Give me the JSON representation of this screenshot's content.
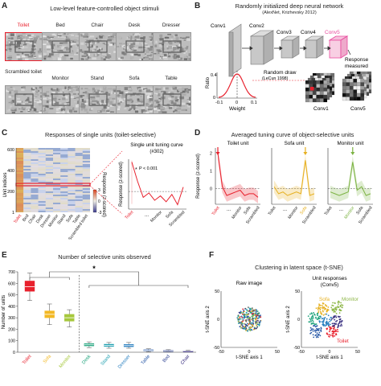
{
  "panel_a": {
    "label": "A",
    "title": "Low-level feature-controlled object stimuli",
    "stimuli": [
      "Toilet",
      "Bed",
      "Chair",
      "Desk",
      "Dresser",
      "Scrambled toilet",
      "Monitor",
      "Stand",
      "Sofa",
      "Table"
    ],
    "colors": {
      "highlight": "#e8212d"
    }
  },
  "panel_b": {
    "label": "B",
    "title": "Randomly initialized deep neural network",
    "subtitle": "(AlexNet, Krizhevsky 2012)",
    "layers": [
      "Conv1",
      "Conv2",
      "Conv3",
      "Conv4",
      "Conv5"
    ],
    "response_label": "Response measured",
    "random_draw": "Random draw",
    "random_draw_ref": "(LeCun 1998)",
    "ylabel": "Ratio",
    "xlabel": "Weight",
    "xticks": [
      "-0.1",
      "0",
      "0.1"
    ],
    "yticks": [
      "0.4",
      "0"
    ],
    "map_labels": [
      "Conv1",
      "Conv5"
    ],
    "colors": {
      "conv5": "#e8499d",
      "curve": "#e8212d"
    }
  },
  "panel_c": {
    "label": "C",
    "title": "Responses of single units (toilet-selective)",
    "ylabel": "Unit indices",
    "yticks": [
      "600",
      "400",
      "200",
      "1"
    ],
    "xcats": [
      "Toilet",
      "Bed",
      "Chair",
      "Desk",
      "Dresser",
      "Monitor",
      "Stand",
      "Sofa",
      "Table",
      "Scrambled toilet"
    ],
    "colorbar_label": "Response (z-scored)",
    "colorbar_ticks": [
      "3",
      "0",
      "-3"
    ],
    "inset_title": "Single unit tuning curve",
    "inset_subtitle": "(#302)",
    "pvalue": "P < 0.001",
    "inset_ylabel": "Response (z-scored)",
    "inset_xlabels": [
      "Toilet",
      "Monitor",
      "Sofa",
      "Scrambled"
    ],
    "inset_dots": "...",
    "inset_curve": [
      2.0,
      0.7,
      -0.4,
      -0.1,
      -0.6,
      -0.3,
      -0.7,
      -0.2,
      -0.9,
      0.3
    ]
  },
  "panel_d": {
    "label": "D",
    "title": "Averaged tuning curve of object-selective units",
    "ylabel": "Response (z-scored)",
    "yticks": [
      "2",
      "1",
      "0"
    ],
    "subplots": [
      {
        "title": "Toilet unit",
        "color": "#e8212d",
        "xlabels": [
          "Toilet",
          "Monitor",
          "Sofa",
          "Scrambled"
        ],
        "values": [
          2.0,
          0.1,
          -0.4,
          -0.3,
          -0.2,
          -0.1,
          -0.4,
          -0.3,
          -0.3,
          -0.5
        ]
      },
      {
        "title": "Sofa unit",
        "color": "#e6b020",
        "xlabels": [
          "Toilet",
          "Monitor",
          "Sofa",
          "Scrambled"
        ],
        "values": [
          0.1,
          -0.3,
          -0.2,
          -0.4,
          -0.3,
          -0.2,
          -0.3,
          1.6,
          -0.4,
          -0.3
        ]
      },
      {
        "title": "Monitor unit",
        "color": "#7cb342",
        "xlabels": [
          "Toilet",
          "Monitor",
          "Sofa",
          "Scrambled"
        ],
        "values": [
          -0.2,
          -0.3,
          -0.4,
          -0.3,
          -0.2,
          1.5,
          -0.1,
          0.1,
          -0.4,
          -0.3
        ]
      }
    ],
    "dots": "..."
  },
  "panel_e": {
    "label": "E",
    "title": "Number of selective units observed",
    "ylabel": "Number of units",
    "yticks": [
      "700",
      "600",
      "500",
      "400",
      "300",
      "200",
      "100",
      "0"
    ],
    "significance": "*",
    "categories": [
      "Toilet",
      "Sofa",
      "Monitor",
      "Desk",
      "Stand",
      "Dresser",
      "Table",
      "Bed",
      "Chair"
    ],
    "colors": [
      "#e8212d",
      "#f2b824",
      "#a6c83c",
      "#1fa37c",
      "#20a0b0",
      "#2a80c0",
      "#2a5aa8",
      "#2a3e90",
      "#3a3080"
    ],
    "boxes": [
      {
        "min": 450,
        "q1": 530,
        "median": 570,
        "q3": 620,
        "max": 690
      },
      {
        "min": 240,
        "q1": 300,
        "median": 330,
        "q3": 360,
        "max": 420
      },
      {
        "min": 220,
        "q1": 270,
        "median": 300,
        "q3": 330,
        "max": 370
      },
      {
        "min": 40,
        "q1": 55,
        "median": 65,
        "q3": 75,
        "max": 90
      },
      {
        "min": 35,
        "q1": 50,
        "median": 60,
        "q3": 70,
        "max": 85
      },
      {
        "min": 35,
        "q1": 48,
        "median": 58,
        "q3": 68,
        "max": 85
      },
      {
        "min": 5,
        "q1": 12,
        "median": 16,
        "q3": 22,
        "max": 30
      },
      {
        "min": 3,
        "q1": 8,
        "median": 12,
        "q3": 16,
        "max": 22
      },
      {
        "min": 2,
        "q1": 6,
        "median": 9,
        "q3": 12,
        "max": 18
      }
    ]
  },
  "panel_f": {
    "label": "F",
    "title": "Clustering in latent space (t-SNE)",
    "left_title": "Raw image",
    "right_title": "Unit responses",
    "right_subtitle": "(Conv5)",
    "ylabel": "t-SNE axis 2",
    "xlabel": "t-SNE axis 1",
    "ticks": [
      "-50",
      "0",
      "50"
    ],
    "cluster_labels": [
      {
        "text": "Sofa",
        "color": "#e6b020"
      },
      {
        "text": "Monitor",
        "color": "#8fb74a"
      },
      {
        "text": "Toilet",
        "color": "#e8212d"
      }
    ]
  },
  "chart_data": [
    {
      "type": "line",
      "title": "Single unit tuning curve",
      "subtitle": "(#302)",
      "categories": [
        "Toilet",
        "Bed",
        "Chair",
        "Desk",
        "Dresser",
        "Monitor",
        "Stand",
        "Sofa",
        "Table",
        "Scrambled toilet"
      ],
      "values": [
        2.0,
        0.7,
        -0.4,
        -0.1,
        -0.6,
        -0.3,
        -0.7,
        -0.2,
        -0.9,
        0.3
      ],
      "ylabel": "Response (z-scored)"
    },
    {
      "type": "line",
      "title": "Averaged tuning curve of object-selective units",
      "categories": [
        "Toilet",
        "Bed",
        "Chair",
        "Desk",
        "Dresser",
        "Monitor",
        "Stand",
        "Sofa",
        "Table",
        "Scrambled toilet"
      ],
      "series": [
        {
          "name": "Toilet unit",
          "values": [
            2.0,
            0.1,
            -0.4,
            -0.3,
            -0.2,
            -0.1,
            -0.4,
            -0.3,
            -0.3,
            -0.5
          ]
        },
        {
          "name": "Sofa unit",
          "values": [
            0.1,
            -0.3,
            -0.2,
            -0.4,
            -0.3,
            -0.2,
            -0.3,
            1.6,
            -0.4,
            -0.3
          ]
        },
        {
          "name": "Monitor unit",
          "values": [
            -0.2,
            -0.3,
            -0.4,
            -0.3,
            -0.2,
            1.5,
            -0.1,
            0.1,
            -0.4,
            -0.3
          ]
        }
      ],
      "ylabel": "Response (z-scored)",
      "yticks": [
        0,
        1,
        2
      ]
    },
    {
      "type": "bar",
      "title": "Number of selective units observed",
      "categories": [
        "Toilet",
        "Sofa",
        "Monitor",
        "Desk",
        "Stand",
        "Dresser",
        "Table",
        "Bed",
        "Chair"
      ],
      "values": [
        570,
        330,
        300,
        65,
        60,
        58,
        16,
        12,
        9
      ],
      "ylabel": "Number of units",
      "ylim": [
        0,
        700
      ]
    }
  ]
}
